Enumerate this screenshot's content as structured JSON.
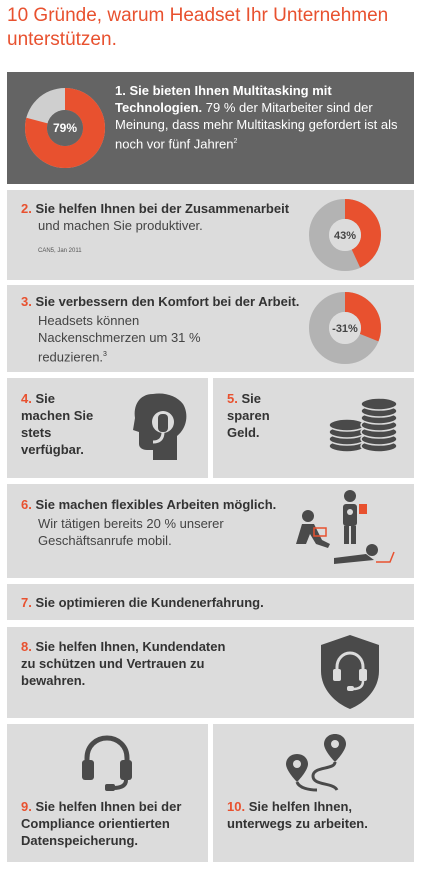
{
  "title": "10 Gründe, warum Headset Ihr Unternehmen unterstützen.",
  "colors": {
    "accent": "#e8512f",
    "panel": "#dcdcdc",
    "dark_panel": "#646464",
    "icon_dark": "#4a4a4a"
  },
  "reasons": [
    {
      "num": "1.",
      "head": "Sie bieten Ihnen Multitasking mit Technologien.",
      "body": "79 % der Mitarbeiter sind der Meinung, dass mehr Multitasking gefordert ist als noch vor fünf Jahren",
      "sup": "2",
      "chart_label": "79%",
      "chart_value": 79
    },
    {
      "num": "2.",
      "head": "Sie helfen Ihnen bei der Zusammenarbeit",
      "body": "und machen Sie produktiver.",
      "note": "CAN5, Jan 2011",
      "chart_label": "43%",
      "chart_value": 43
    },
    {
      "num": "3.",
      "head": "Sie verbessern den Komfort bei der Arbeit.",
      "body": "Headsets können Nackenschmerzen um 31 % reduzieren.",
      "sup": "3",
      "chart_label": "-31%",
      "chart_value": 31
    },
    {
      "num": "4.",
      "head": "Sie machen Sie stets verfügbar.",
      "icon": "headset-head-icon"
    },
    {
      "num": "5.",
      "head": "Sie sparen Geld.",
      "icon": "coins-icon"
    },
    {
      "num": "6.",
      "head": "Sie machen flexibles Arbeiten möglich.",
      "body": "Wir tätigen bereits 20 % unserer Geschäftsanrufe mobil.",
      "icon": "mobile-workers-icon"
    },
    {
      "num": "7.",
      "head": "Sie optimieren die Kundenerfahrung."
    },
    {
      "num": "8.",
      "head": "Sie helfen Ihnen, Kundendaten zu schützen und Vertrauen zu bewahren.",
      "icon": "shield-headset-icon"
    },
    {
      "num": "9.",
      "head": "Sie helfen Ihnen bei der Compliance orientierten Datenspeicherung.",
      "icon": "headset-icon"
    },
    {
      "num": "10.",
      "head": "Sie helfen Ihnen, unterwegs zu arbeiten.",
      "icon": "route-map-icon"
    }
  ]
}
